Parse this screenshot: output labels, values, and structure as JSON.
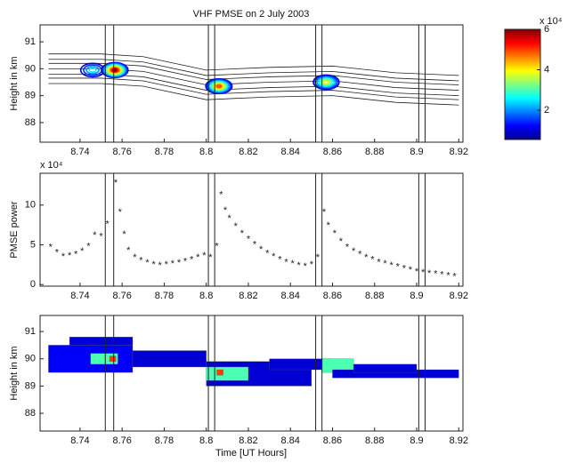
{
  "chart_data": [
    {
      "type": "contour",
      "title": "VHF PMSE on 2 July 2003",
      "ylabel": "Height in km",
      "xlim": [
        8.721,
        8.922
      ],
      "xticks": [
        8.74,
        8.76,
        8.78,
        8.8,
        8.82,
        8.84,
        8.86,
        8.88,
        8.9,
        8.92
      ],
      "ylim": [
        87.27,
        91.63
      ],
      "yticks": [
        88,
        89,
        90,
        91
      ],
      "markers": [
        8.752,
        8.756,
        8.801,
        8.804,
        8.852,
        8.855,
        8.901,
        8.904
      ],
      "layer": {
        "x": [
          8.725,
          8.75,
          8.77,
          8.8,
          8.83,
          8.86,
          8.89,
          8.92
        ],
        "height": [
          90.0,
          90.0,
          89.9,
          89.4,
          89.5,
          89.55,
          89.3,
          89.2
        ]
      },
      "blobs": [
        {
          "x": 8.746,
          "height": 89.95,
          "peak": 2.5
        },
        {
          "x": 8.7565,
          "height": 89.95,
          "peak": 6
        },
        {
          "x": 8.806,
          "height": 89.35,
          "peak": 5
        },
        {
          "x": 8.857,
          "height": 89.5,
          "peak": 4
        }
      ],
      "colorbar": {
        "clim": [
          0.55,
          6
        ],
        "ticks": [
          2,
          4,
          6
        ],
        "exponent": "x 10⁴"
      }
    },
    {
      "type": "scatter",
      "ylabel": "PMSE power",
      "exponent": "x 10⁴",
      "color": "#222222",
      "xlim": [
        8.721,
        8.922
      ],
      "xticks": [
        8.74,
        8.76,
        8.78,
        8.8,
        8.82,
        8.84,
        8.86,
        8.88,
        8.9,
        8.92
      ],
      "ylim": [
        -0.2,
        14
      ],
      "yticks": [
        0,
        5,
        10
      ],
      "markers": [
        8.752,
        8.756,
        8.801,
        8.804,
        8.852,
        8.855,
        8.901,
        8.904
      ],
      "x": [
        8.726,
        8.729,
        8.732,
        8.735,
        8.738,
        8.741,
        8.744,
        8.747,
        8.75,
        8.753,
        8.757,
        8.759,
        8.761,
        8.763,
        8.766,
        8.769,
        8.772,
        8.775,
        8.778,
        8.781,
        8.784,
        8.787,
        8.79,
        8.793,
        8.796,
        8.799,
        8.802,
        8.805,
        8.807,
        8.809,
        8.811,
        8.814,
        8.817,
        8.82,
        8.823,
        8.826,
        8.829,
        8.832,
        8.835,
        8.838,
        8.841,
        8.844,
        8.847,
        8.85,
        8.853,
        8.856,
        8.858,
        8.861,
        8.864,
        8.867,
        8.87,
        8.873,
        8.876,
        8.879,
        8.882,
        8.885,
        8.888,
        8.891,
        8.894,
        8.897,
        8.9,
        8.903,
        8.906,
        8.909,
        8.912,
        8.915,
        8.918
      ],
      "values": [
        4.9,
        4.2,
        3.7,
        3.8,
        4.0,
        4.4,
        5.0,
        6.4,
        6.2,
        7.8,
        13.0,
        9.3,
        6.5,
        4.5,
        3.6,
        3.2,
        2.9,
        2.7,
        2.6,
        2.7,
        2.8,
        2.9,
        3.1,
        3.3,
        3.6,
        3.8,
        3.6,
        5.0,
        11.5,
        9.5,
        8.5,
        7.5,
        6.6,
        5.9,
        5.2,
        4.6,
        4.1,
        3.7,
        3.3,
        3.0,
        2.8,
        2.6,
        2.5,
        2.7,
        3.6,
        9.3,
        7.6,
        6.6,
        5.6,
        4.9,
        4.4,
        4.0,
        3.6,
        3.3,
        3.0,
        2.8,
        2.6,
        2.4,
        2.2,
        2.0,
        1.8,
        1.7,
        1.6,
        1.5,
        1.4,
        1.3,
        1.2
      ]
    },
    {
      "type": "image",
      "ylabel": "Height in km",
      "xlabel": "Time [UT Hours]",
      "xlim": [
        8.721,
        8.922
      ],
      "xticks": [
        8.74,
        8.76,
        8.78,
        8.8,
        8.82,
        8.84,
        8.86,
        8.88,
        8.9,
        8.92
      ],
      "ylim": [
        87.35,
        91.59
      ],
      "yticks": [
        88,
        89,
        90,
        91
      ],
      "clim": [
        0.55,
        6
      ],
      "markers": [
        8.752,
        8.756,
        8.801,
        8.804,
        8.852,
        8.855,
        8.901,
        8.904
      ],
      "cells": [
        {
          "x0": 8.725,
          "x1": 8.765,
          "h0": 89.5,
          "h1": 90.5,
          "power": 1.2
        },
        {
          "x0": 8.735,
          "x1": 8.765,
          "h0": 90.5,
          "h1": 90.8,
          "power": 1
        },
        {
          "x0": 8.765,
          "x1": 8.8,
          "h0": 89.7,
          "h1": 90.3,
          "power": 1
        },
        {
          "x0": 8.745,
          "x1": 8.758,
          "h0": 89.8,
          "h1": 90.2,
          "power": 3
        },
        {
          "x0": 8.754,
          "x1": 8.757,
          "h0": 89.9,
          "h1": 90.1,
          "power": 5
        },
        {
          "x0": 8.8,
          "x1": 8.85,
          "h0": 89.0,
          "h1": 89.9,
          "power": 1
        },
        {
          "x0": 8.8,
          "x1": 8.82,
          "h0": 89.2,
          "h1": 89.7,
          "power": 3
        },
        {
          "x0": 8.805,
          "x1": 8.808,
          "h0": 89.4,
          "h1": 89.6,
          "power": 5
        },
        {
          "x0": 8.83,
          "x1": 8.86,
          "h0": 89.6,
          "h1": 90.0,
          "power": 1
        },
        {
          "x0": 8.855,
          "x1": 8.87,
          "h0": 89.5,
          "h1": 90.0,
          "power": 3
        },
        {
          "x0": 8.86,
          "x1": 8.92,
          "h0": 89.3,
          "h1": 89.6,
          "power": 1
        },
        {
          "x0": 8.87,
          "x1": 8.9,
          "h0": 89.5,
          "h1": 89.8,
          "power": 1
        }
      ]
    }
  ]
}
